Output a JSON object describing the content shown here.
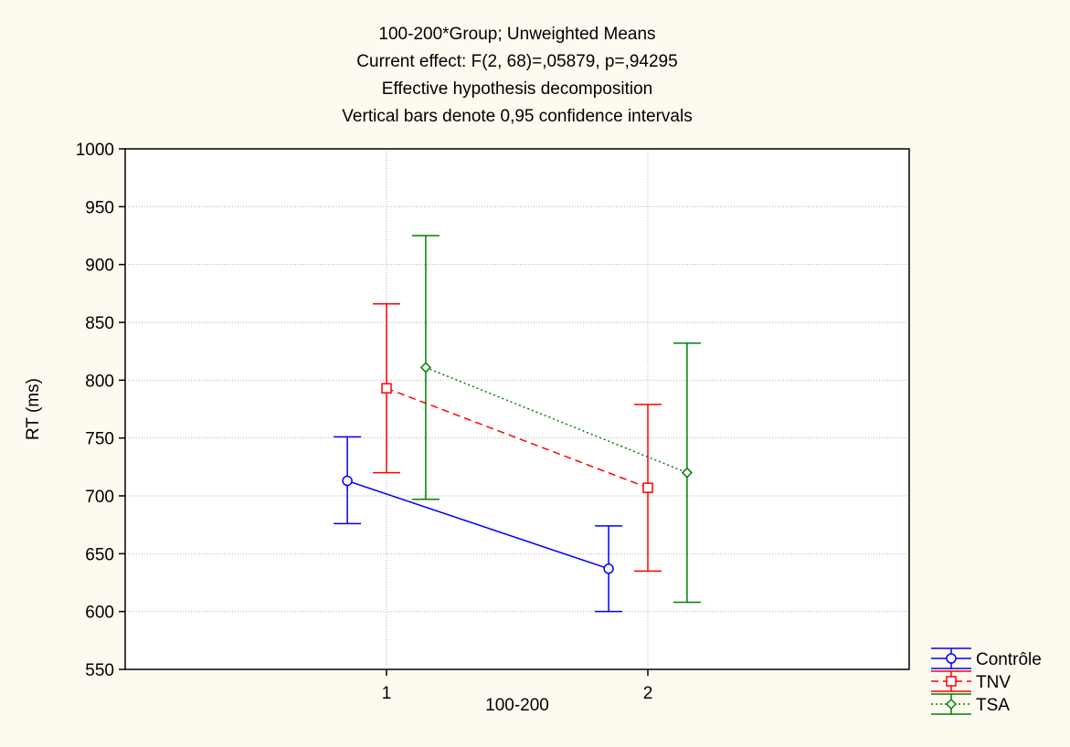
{
  "chart_data": {
    "type": "line",
    "title_lines": [
      "100-200*Group; Unweighted Means",
      "Current effect: F(2, 68)=,05879, p=,94295",
      "Effective hypothesis decomposition",
      "Vertical bars denote 0,95 confidence intervals"
    ],
    "xlabel": "100-200",
    "ylabel": "RT (ms)",
    "categories": [
      "1",
      "2"
    ],
    "ylim": [
      550,
      1000
    ],
    "yticks": [
      550,
      600,
      650,
      700,
      750,
      800,
      850,
      900,
      950,
      1000
    ],
    "grid": true,
    "legend_position": "bottom-right-outside",
    "series": [
      {
        "name": "Contrôle",
        "color": "#0000ff",
        "line_style": "solid",
        "marker": "circle",
        "values": [
          713,
          637
        ],
        "ci_low": [
          676,
          600
        ],
        "ci_high": [
          751,
          674
        ]
      },
      {
        "name": "TNV",
        "color": "#ff0000",
        "line_style": "dashed",
        "marker": "square",
        "values": [
          793,
          707
        ],
        "ci_low": [
          720,
          635
        ],
        "ci_high": [
          866,
          779
        ]
      },
      {
        "name": "TSA",
        "color": "#008000",
        "line_style": "dotted",
        "marker": "diamond",
        "values": [
          811,
          720
        ],
        "ci_low": [
          697,
          608
        ],
        "ci_high": [
          925,
          832
        ]
      }
    ]
  },
  "style": {
    "background": "#fffaf0",
    "plot_background": "#ffffff",
    "frame_color": "#000000",
    "grid_color": "#b3b3b3"
  }
}
